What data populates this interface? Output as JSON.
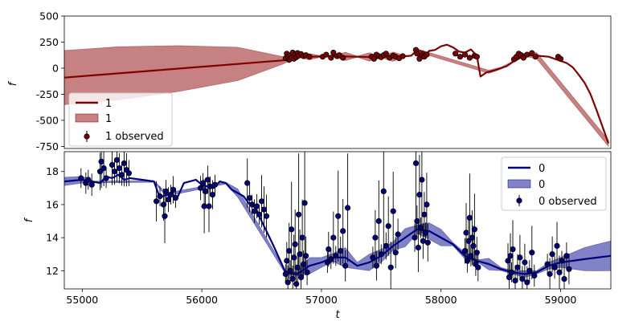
{
  "chart_data": [
    {
      "type": "line",
      "panel": "top",
      "xlabel": "",
      "ylabel": "f",
      "xlim": [
        54850,
        59420
      ],
      "ylim": [
        -770,
        500
      ],
      "yticks": [
        500,
        250,
        0,
        -250,
        -500,
        -750
      ],
      "colors": {
        "line": "#7f0000",
        "band": "#b35858",
        "points": "#7f0000"
      },
      "legend": {
        "position": "lower-left",
        "entries": [
          "1",
          "1",
          "1 observed"
        ]
      },
      "line": {
        "name": "1",
        "x": [
          54850,
          56680,
          56720,
          56900,
          57100,
          57300,
          57500,
          57700,
          57750,
          57800,
          57850,
          57880,
          57900,
          57950,
          58000,
          58050,
          58100,
          58150,
          58200,
          58250,
          58300,
          58330,
          58380,
          58450,
          58500,
          58550,
          58600,
          58650,
          58700,
          58800,
          58900,
          58950,
          59000,
          59050,
          59100,
          59150,
          59200,
          59250,
          59300,
          59350,
          59400
        ],
        "y": [
          -90,
          75,
          115,
          110,
          115,
          110,
          105,
          115,
          120,
          170,
          160,
          140,
          165,
          175,
          210,
          225,
          200,
          160,
          150,
          180,
          120,
          -80,
          -40,
          -20,
          0,
          20,
          60,
          90,
          130,
          120,
          110,
          90,
          70,
          50,
          10,
          -60,
          -140,
          -250,
          -400,
          -560,
          -720
        ]
      },
      "band": {
        "name": "1",
        "x": [
          54850,
          55300,
          55800,
          56300,
          56680,
          56800,
          56900,
          57000,
          57100,
          57200,
          57300,
          57400,
          57500,
          57600,
          57700,
          57750,
          57800,
          58400,
          58500,
          58600,
          58700,
          58800,
          59400
        ],
        "halfwidth": [
          260,
          255,
          220,
          160,
          35,
          5,
          30,
          5,
          5,
          40,
          5,
          40,
          5,
          45,
          5,
          5,
          15,
          15,
          10,
          5,
          15,
          30,
          30
        ]
      },
      "observed": {
        "name": "1 observed",
        "x": [
          56700,
          56710,
          56720,
          56730,
          56740,
          56750,
          56760,
          56770,
          56780,
          56790,
          56800,
          56810,
          56830,
          56850,
          56870,
          56900,
          57010,
          57040,
          57080,
          57100,
          57130,
          57150,
          57180,
          57420,
          57440,
          57460,
          57480,
          57500,
          57520,
          57540,
          57570,
          57600,
          57620,
          57650,
          57680,
          57790,
          57800,
          57820,
          57840,
          57860,
          57880,
          58120,
          58160,
          58200,
          58240,
          58280,
          58300,
          58610,
          58630,
          58650,
          58670,
          58690,
          58720,
          58760,
          58790,
          58980,
          59000
        ],
        "y": [
          95,
          140,
          110,
          80,
          125,
          100,
          150,
          90,
          130,
          105,
          145,
          120,
          135,
          115,
          125,
          110,
          110,
          130,
          100,
          150,
          115,
          125,
          100,
          110,
          90,
          130,
          115,
          105,
          125,
          140,
          100,
          120,
          110,
          95,
          115,
          175,
          140,
          90,
          125,
          110,
          130,
          140,
          110,
          130,
          100,
          120,
          110,
          85,
          110,
          140,
          125,
          100,
          130,
          145,
          110,
          110,
          90
        ]
      }
    },
    {
      "type": "line",
      "panel": "bottom",
      "xlabel": "t",
      "ylabel": "f",
      "xlim": [
        54850,
        59420
      ],
      "ylim": [
        10.9,
        19.2
      ],
      "xticks": [
        55000,
        56000,
        57000,
        58000,
        59000
      ],
      "yticks": [
        18,
        16,
        14,
        12
      ],
      "colors": {
        "line": "#00007f",
        "band": "#5858b3",
        "points": "#00007f",
        "errorbars": "#000000"
      },
      "legend": {
        "position": "upper-right",
        "entries": [
          "0",
          "0",
          "0 observed"
        ]
      },
      "line": {
        "name": "0",
        "x": [
          54850,
          55000,
          55150,
          55200,
          55250,
          55300,
          55350,
          55400,
          55500,
          55600,
          55650,
          55700,
          55800,
          55850,
          55900,
          55950,
          56000,
          56100,
          56150,
          56200,
          56250,
          56350,
          56400,
          56450,
          56500,
          56600,
          56700,
          56800,
          56900,
          57000,
          57100,
          57200,
          57300,
          57400,
          57500,
          57600,
          57700,
          57800,
          57900,
          58000,
          58100,
          58200,
          58300,
          58400,
          58500,
          58600,
          58700,
          58800,
          58900,
          59000,
          59100,
          59200,
          59420
        ],
        "y": [
          17.4,
          17.5,
          17.3,
          17.7,
          17.6,
          17.8,
          17.5,
          17.6,
          17.5,
          17.4,
          16.4,
          16.6,
          16.5,
          17.3,
          17.4,
          17.5,
          17.2,
          17.0,
          17.4,
          17.3,
          16.9,
          16.5,
          16.0,
          15.8,
          15.0,
          13.5,
          11.9,
          11.8,
          12.3,
          12.5,
          12.8,
          12.8,
          12.3,
          12.5,
          12.9,
          13.5,
          14.0,
          14.5,
          14.4,
          14.0,
          13.6,
          12.9,
          12.6,
          12.4,
          12.1,
          11.9,
          11.8,
          11.9,
          12.3,
          12.5,
          12.6,
          12.7,
          12.9
        ]
      },
      "band": {
        "name": "0",
        "x": [
          54850,
          55000,
          55100,
          55600,
          55700,
          56200,
          56300,
          56700,
          56800,
          56900,
          57000,
          57100,
          57200,
          57300,
          57400,
          57500,
          57600,
          57700,
          57800,
          57900,
          58000,
          58100,
          58200,
          58300,
          58400,
          58500,
          58600,
          58700,
          58800,
          58900,
          59000,
          59100,
          59200,
          59300,
          59420
        ],
        "halfwidth": [
          0.25,
          0.2,
          0.05,
          0.05,
          0.1,
          0.05,
          0.25,
          0.1,
          0.1,
          0.5,
          0.3,
          0.25,
          0.6,
          0.2,
          0.5,
          0.4,
          0.25,
          0.55,
          0.25,
          0.5,
          0.5,
          0.1,
          0.2,
          0.05,
          0.35,
          0.1,
          0.1,
          0.2,
          0.1,
          0.2,
          0.3,
          0.5,
          0.7,
          0.8,
          0.9
        ]
      },
      "observed": {
        "name": "0 observed",
        "points": [
          [
            54990,
            17.6
          ],
          [
            55030,
            17.3
          ],
          [
            55050,
            17.5
          ],
          [
            55080,
            17.2
          ],
          [
            55150,
            18.0
          ],
          [
            55160,
            18.6
          ],
          [
            55180,
            18.2
          ],
          [
            55200,
            17.6
          ],
          [
            55250,
            18.4
          ],
          [
            55270,
            18.0
          ],
          [
            55290,
            18.7
          ],
          [
            55310,
            18.2
          ],
          [
            55330,
            17.8
          ],
          [
            55350,
            18.5
          ],
          [
            55370,
            18.1
          ],
          [
            55390,
            17.9
          ],
          [
            55620,
            16.2
          ],
          [
            55650,
            16.5
          ],
          [
            55680,
            16.0
          ],
          [
            55700,
            16.8
          ],
          [
            55720,
            16.3
          ],
          [
            55740,
            16.6
          ],
          [
            55760,
            16.9
          ],
          [
            55780,
            16.4
          ],
          [
            55690,
            15.3
          ],
          [
            55990,
            17.0
          ],
          [
            56010,
            17.3
          ],
          [
            56030,
            16.8
          ],
          [
            56050,
            17.5
          ],
          [
            56070,
            17.1
          ],
          [
            56090,
            16.6
          ],
          [
            56110,
            17.2
          ],
          [
            56020,
            15.9
          ],
          [
            56060,
            15.9
          ],
          [
            56380,
            17.3
          ],
          [
            56400,
            16.4
          ],
          [
            56420,
            16.0
          ],
          [
            56440,
            15.6
          ],
          [
            56460,
            15.9
          ],
          [
            56480,
            15.4
          ],
          [
            56500,
            16.2
          ],
          [
            56520,
            15.7
          ],
          [
            56540,
            15.3
          ],
          [
            56700,
            11.8
          ],
          [
            56710,
            12.6
          ],
          [
            56720,
            11.3
          ],
          [
            56730,
            13.2
          ],
          [
            56740,
            12.0
          ],
          [
            56750,
            14.5
          ],
          [
            56760,
            11.5
          ],
          [
            56770,
            12.8
          ],
          [
            56780,
            13.6
          ],
          [
            56790,
            11.2
          ],
          [
            56800,
            12.2
          ],
          [
            56810,
            15.4
          ],
          [
            56820,
            13.0
          ],
          [
            56830,
            11.6
          ],
          [
            56840,
            14.0
          ],
          [
            56850,
            12.4
          ],
          [
            56860,
            16.1
          ],
          [
            56870,
            12.9
          ],
          [
            56880,
            11.9
          ],
          [
            57050,
            12.5
          ],
          [
            57060,
            13.3
          ],
          [
            57080,
            12.7
          ],
          [
            57100,
            14.0
          ],
          [
            57120,
            12.9
          ],
          [
            57140,
            15.3
          ],
          [
            57160,
            13.2
          ],
          [
            57180,
            14.4
          ],
          [
            57200,
            12.3
          ],
          [
            57220,
            15.8
          ],
          [
            57430,
            12.8
          ],
          [
            57450,
            14.0
          ],
          [
            57460,
            12.3
          ],
          [
            57480,
            15.0
          ],
          [
            57500,
            13.0
          ],
          [
            57520,
            16.8
          ],
          [
            57540,
            13.5
          ],
          [
            57560,
            14.7
          ],
          [
            57580,
            12.2
          ],
          [
            57600,
            15.6
          ],
          [
            57620,
            13.1
          ],
          [
            57640,
            14.2
          ],
          [
            57780,
            14.0
          ],
          [
            57790,
            18.5
          ],
          [
            57800,
            15.0
          ],
          [
            57810,
            13.4
          ],
          [
            57820,
            16.6
          ],
          [
            57830,
            14.6
          ],
          [
            57840,
            17.5
          ],
          [
            57850,
            13.8
          ],
          [
            57860,
            15.4
          ],
          [
            57870,
            14.3
          ],
          [
            57880,
            16.0
          ],
          [
            57890,
            13.7
          ],
          [
            58200,
            13.2
          ],
          [
            58210,
            14.3
          ],
          [
            58220,
            12.6
          ],
          [
            58230,
            13.8
          ],
          [
            58240,
            15.2
          ],
          [
            58250,
            12.9
          ],
          [
            58260,
            14.0
          ],
          [
            58270,
            13.5
          ],
          [
            58280,
            14.5
          ],
          [
            58290,
            12.4
          ],
          [
            58300,
            13.1
          ],
          [
            58310,
            12.2
          ],
          [
            58560,
            12.6
          ],
          [
            58570,
            11.6
          ],
          [
            58580,
            12.9
          ],
          [
            58590,
            11.9
          ],
          [
            58600,
            13.3
          ],
          [
            58620,
            11.4
          ],
          [
            58640,
            12.2
          ],
          [
            58660,
            12.8
          ],
          [
            58680,
            11.5
          ],
          [
            58700,
            12.5
          ],
          [
            58720,
            11.3
          ],
          [
            58740,
            12.0
          ],
          [
            58760,
            13.1
          ],
          [
            58780,
            11.7
          ],
          [
            58890,
            12.4
          ],
          [
            58910,
            11.8
          ],
          [
            58930,
            13.0
          ],
          [
            58950,
            12.2
          ],
          [
            58970,
            13.5
          ],
          [
            58990,
            11.9
          ],
          [
            59010,
            12.6
          ],
          [
            59030,
            11.5
          ],
          [
            59050,
            12.9
          ],
          [
            59070,
            12.1
          ]
        ]
      }
    }
  ]
}
